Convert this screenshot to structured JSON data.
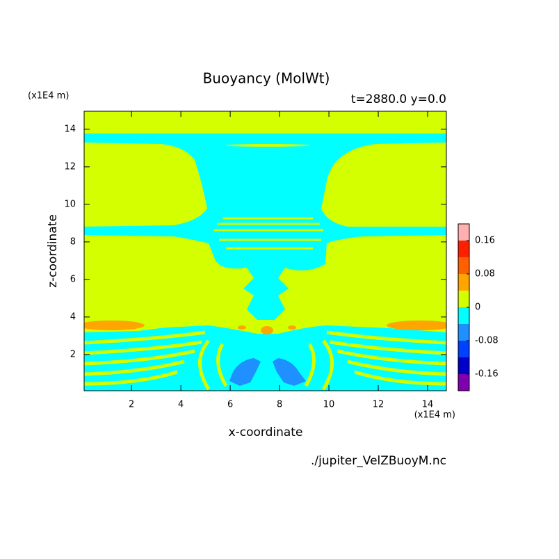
{
  "chart_data": {
    "type": "contour",
    "title": "Buoyancy (MolWt)",
    "subtitle": "t=2880.0 y=0.0",
    "x_label": "x-coordinate",
    "y_label": "z-coordinate",
    "x_unit": "(x1E4 m)",
    "y_unit": "(x1E4 m)",
    "source": "./jupiter_VelZBuoyM.nc",
    "xlim": [
      0.08,
      14.76
    ],
    "ylim": [
      0.07,
      14.96
    ],
    "xticks": [
      2,
      4,
      6,
      8,
      10,
      12,
      14
    ],
    "yticks": [
      2,
      4,
      6,
      8,
      10,
      12,
      14
    ],
    "clim": [
      -0.2,
      0.2
    ],
    "colors": [
      "#8000b0",
      "#0000c8",
      "#0040ff",
      "#1e90ff",
      "#00ffff",
      "#d4ff00",
      "#ffa500",
      "#ff6000",
      "#ff2000",
      "#ffb0b0"
    ],
    "cticks": [
      -0.16,
      -0.08,
      0,
      0.08,
      0.16
    ]
  }
}
